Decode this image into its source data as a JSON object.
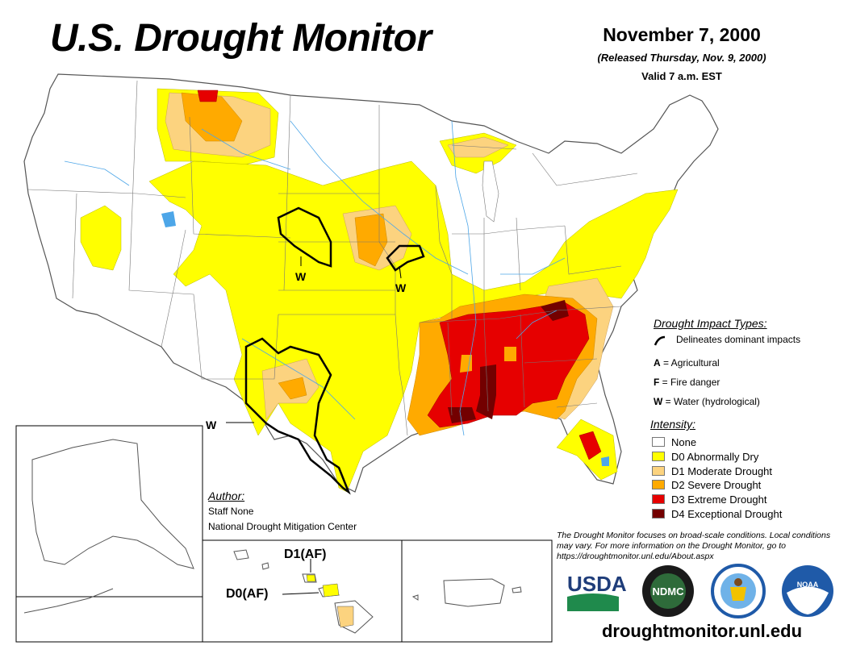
{
  "header": {
    "title": "U.S. Drought Monitor",
    "date": "November 7, 2000",
    "released": "(Released Thursday, Nov. 9, 2000)",
    "valid": "Valid 7 a.m. EST"
  },
  "map_labels": {
    "w1": "W",
    "w2": "W",
    "w3": "W",
    "hawaii_d1": "D1(AF)",
    "hawaii_d0": "D0(AF)"
  },
  "impact_legend": {
    "heading": "Drought Impact Types:",
    "line_text": "Delineates dominant impacts",
    "items": [
      {
        "code": "A",
        "text": " = Agricultural"
      },
      {
        "code": "F",
        "text": " = Fire danger"
      },
      {
        "code": "W",
        "text": " = Water (hydrological)"
      }
    ]
  },
  "intensity_legend": {
    "heading": "Intensity:",
    "items": [
      {
        "label": "None",
        "color": "#ffffff"
      },
      {
        "label": "D0 Abnormally Dry",
        "color": "#ffff00"
      },
      {
        "label": "D1 Moderate Drought",
        "color": "#fcd37f"
      },
      {
        "label": "D2 Severe Drought",
        "color": "#ffaa00"
      },
      {
        "label": "D3 Extreme Drought",
        "color": "#e60000"
      },
      {
        "label": "D4 Exceptional Drought",
        "color": "#730000"
      }
    ]
  },
  "author": {
    "heading": "Author:",
    "name": "Staff None",
    "org": "National Drought Mitigation Center"
  },
  "disclaimer": "The Drought Monitor focuses on broad-scale conditions. Local conditions may vary. For more information on the Drought Monitor, go to https://droughtmonitor.unl.edu/About.aspx",
  "logos": {
    "usda": "USDA",
    "ndmc": "NDMC",
    "noaa": "NOAA"
  },
  "website": "droughtmonitor.unl.edu",
  "colors": {
    "d0": "#ffff00",
    "d1": "#fcd37f",
    "d2": "#ffaa00",
    "d3": "#e60000",
    "d4": "#730000",
    "water": "#4da6e8",
    "border": "#555555"
  }
}
